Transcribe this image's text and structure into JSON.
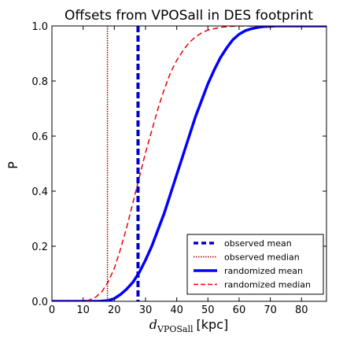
{
  "chart_data": {
    "type": "line",
    "title": "Offsets from VPOSall in DES footprint",
    "xlabel": {
      "main": "d",
      "sub": "VPOSall",
      "unit": "[kpc]"
    },
    "ylabel": "P",
    "xlim": [
      0,
      88
    ],
    "ylim": [
      0,
      1.0
    ],
    "x_ticks": [
      "0",
      "10",
      "20",
      "30",
      "40",
      "50",
      "60",
      "70",
      "80"
    ],
    "y_ticks": [
      "0.0",
      "0.2",
      "0.4",
      "0.6",
      "0.8",
      "1.0"
    ],
    "grid": false,
    "legend_position": "lower-right",
    "reference_lines": [
      {
        "name": "observed mean",
        "x": 27.6,
        "color": "#0000cc",
        "style": "dashed"
      },
      {
        "name": "observed median",
        "x": 17.8,
        "color": "#990000",
        "style": "dotted"
      }
    ],
    "series": [
      {
        "name": "randomized mean",
        "color": "#0000ff",
        "style": "solid",
        "x": [
          0,
          15,
          18,
          20,
          22,
          24,
          26,
          28,
          30,
          32,
          34,
          36,
          38,
          40,
          42,
          44,
          46,
          48,
          50,
          52,
          54,
          56,
          58,
          60,
          62,
          64,
          66,
          68,
          70,
          72,
          75,
          88
        ],
        "y": [
          0,
          0,
          0.003,
          0.01,
          0.025,
          0.045,
          0.07,
          0.105,
          0.15,
          0.2,
          0.26,
          0.32,
          0.39,
          0.46,
          0.53,
          0.6,
          0.67,
          0.73,
          0.79,
          0.84,
          0.885,
          0.92,
          0.95,
          0.97,
          0.983,
          0.99,
          0.995,
          0.998,
          0.999,
          1.0,
          1.0,
          1.0
        ]
      },
      {
        "name": "randomized median",
        "color": "#ee0000",
        "style": "dashed",
        "x": [
          0,
          10,
          12,
          14,
          16,
          18,
          20,
          22,
          24,
          26,
          28,
          30,
          32,
          34,
          36,
          38,
          40,
          42,
          44,
          46,
          48,
          50,
          52,
          54,
          56,
          58,
          60,
          62,
          64,
          66,
          70,
          88
        ],
        "y": [
          0,
          0,
          0.005,
          0.015,
          0.035,
          0.07,
          0.12,
          0.19,
          0.27,
          0.36,
          0.45,
          0.54,
          0.62,
          0.7,
          0.77,
          0.83,
          0.875,
          0.91,
          0.94,
          0.96,
          0.975,
          0.985,
          0.99,
          0.995,
          0.997,
          0.999,
          1.0,
          1.0,
          1.0,
          1.0,
          1.0,
          1.0
        ]
      }
    ]
  }
}
